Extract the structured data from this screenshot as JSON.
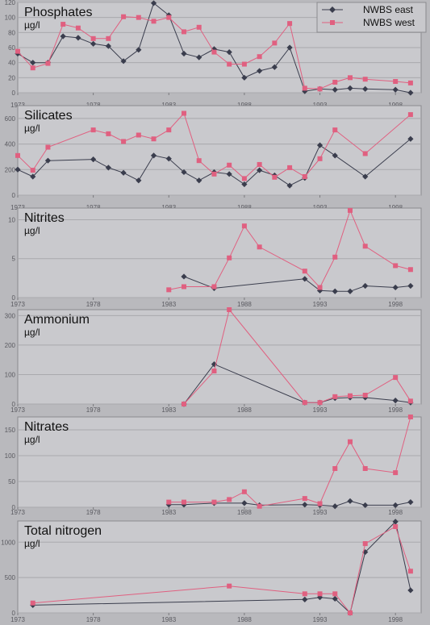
{
  "legend": {
    "items": [
      {
        "label": "NWBS east",
        "color": "#3a3d4d",
        "marker": "diamond"
      },
      {
        "label": "NWBS west",
        "color": "#e06080",
        "marker": "square"
      }
    ]
  },
  "chart_data": [
    {
      "type": "line",
      "title": "Phosphates",
      "unit": "µg/l",
      "xlim": [
        1973,
        1999.7
      ],
      "xticks": [
        1973,
        1978,
        1983,
        1988,
        1993,
        1998
      ],
      "ylim": [
        0,
        120
      ],
      "yticks": [
        0,
        20,
        40,
        60,
        80,
        100,
        120
      ],
      "legend": "top-right",
      "series": [
        {
          "name": "NWBS east",
          "color": "#3a3d4d",
          "marker": "diamond",
          "points": [
            [
              1973,
              52
            ],
            [
              1974,
              40
            ],
            [
              1975,
              40
            ],
            [
              1976,
              75
            ],
            [
              1977,
              73
            ],
            [
              1978,
              65
            ],
            [
              1979,
              62
            ],
            [
              1980,
              42
            ],
            [
              1981,
              57
            ],
            [
              1982,
              119
            ],
            [
              1983,
              103
            ],
            [
              1984,
              52
            ],
            [
              1985,
              47
            ],
            [
              1986,
              58
            ],
            [
              1987,
              54
            ],
            [
              1988,
              20
            ],
            [
              1989,
              29
            ],
            [
              1990,
              34
            ],
            [
              1991,
              60
            ],
            [
              1992,
              2
            ],
            [
              1993,
              5
            ],
            [
              1994,
              4
            ],
            [
              1995,
              6
            ],
            [
              1996,
              5
            ],
            [
              1998,
              4
            ],
            [
              1999,
              0
            ]
          ]
        },
        {
          "name": "NWBS west",
          "color": "#e06080",
          "marker": "square",
          "points": [
            [
              1973,
              55
            ],
            [
              1974,
              33
            ],
            [
              1975,
              39
            ],
            [
              1976,
              91
            ],
            [
              1977,
              86
            ],
            [
              1978,
              72
            ],
            [
              1979,
              72
            ],
            [
              1980,
              101
            ],
            [
              1981,
              100
            ],
            [
              1982,
              95
            ],
            [
              1983,
              100
            ],
            [
              1984,
              81
            ],
            [
              1985,
              87
            ],
            [
              1986,
              54
            ],
            [
              1987,
              38
            ],
            [
              1988,
              38
            ],
            [
              1989,
              48
            ],
            [
              1990,
              66
            ],
            [
              1991,
              92
            ],
            [
              1992,
              6
            ],
            [
              1993,
              5
            ],
            [
              1994,
              14
            ],
            [
              1995,
              20
            ],
            [
              1996,
              18
            ],
            [
              1998,
              15
            ],
            [
              1999,
              13
            ]
          ]
        }
      ]
    },
    {
      "type": "line",
      "title": "Silicates",
      "unit": "µg/l",
      "xlim": [
        1973,
        1999.7
      ],
      "xticks": [
        1973,
        1978,
        1983,
        1988,
        1993,
        1998
      ],
      "ylim": [
        0,
        700
      ],
      "yticks": [
        0,
        200,
        400,
        600
      ],
      "series": [
        {
          "name": "NWBS east",
          "color": "#3a3d4d",
          "marker": "diamond",
          "points": [
            [
              1973,
              200
            ],
            [
              1974,
              145
            ],
            [
              1975,
              270
            ],
            [
              1978,
              280
            ],
            [
              1979,
              215
            ],
            [
              1980,
              175
            ],
            [
              1981,
              115
            ],
            [
              1982,
              310
            ],
            [
              1983,
              285
            ],
            [
              1984,
              180
            ],
            [
              1985,
              115
            ],
            [
              1986,
              180
            ],
            [
              1987,
              165
            ],
            [
              1988,
              85
            ],
            [
              1989,
              195
            ],
            [
              1990,
              155
            ],
            [
              1991,
              75
            ],
            [
              1992,
              135
            ],
            [
              1993,
              390
            ],
            [
              1994,
              310
            ],
            [
              1996,
              145
            ],
            [
              1999,
              440
            ]
          ]
        },
        {
          "name": "NWBS west",
          "color": "#e06080",
          "marker": "square",
          "points": [
            [
              1973,
              310
            ],
            [
              1974,
              195
            ],
            [
              1975,
              375
            ],
            [
              1978,
              510
            ],
            [
              1979,
              480
            ],
            [
              1980,
              420
            ],
            [
              1981,
              470
            ],
            [
              1982,
              440
            ],
            [
              1983,
              510
            ],
            [
              1984,
              640
            ],
            [
              1985,
              270
            ],
            [
              1986,
              165
            ],
            [
              1987,
              235
            ],
            [
              1988,
              130
            ],
            [
              1989,
              240
            ],
            [
              1990,
              140
            ],
            [
              1991,
              215
            ],
            [
              1992,
              145
            ],
            [
              1993,
              285
            ],
            [
              1994,
              510
            ],
            [
              1996,
              325
            ],
            [
              1999,
              630
            ]
          ]
        }
      ]
    },
    {
      "type": "line",
      "title": "Nitrites",
      "unit": "µg/l",
      "xlim": [
        1973,
        1999.7
      ],
      "xticks": [
        1973,
        1978,
        1983,
        1988,
        1993,
        1998
      ],
      "ylim": [
        0,
        11.5
      ],
      "yticks": [
        0,
        5,
        10
      ],
      "series": [
        {
          "name": "NWBS east",
          "color": "#3a3d4d",
          "marker": "diamond",
          "points": [
            [
              1984,
              2.7
            ],
            [
              1986,
              1.2
            ],
            [
              1992,
              2.4
            ],
            [
              1993,
              0.9
            ],
            [
              1994,
              0.8
            ],
            [
              1995,
              0.8
            ],
            [
              1996,
              1.5
            ],
            [
              1998,
              1.3
            ],
            [
              1999,
              1.5
            ]
          ]
        },
        {
          "name": "NWBS west",
          "color": "#e06080",
          "marker": "square",
          "points": [
            [
              1983,
              1.0
            ],
            [
              1984,
              1.4
            ],
            [
              1986,
              1.4
            ],
            [
              1987,
              5.1
            ],
            [
              1988,
              9.2
            ],
            [
              1989,
              6.5
            ],
            [
              1992,
              3.4
            ],
            [
              1993,
              1.3
            ],
            [
              1994,
              5.2
            ],
            [
              1995,
              11.2
            ],
            [
              1996,
              6.6
            ],
            [
              1998,
              4.1
            ],
            [
              1999,
              3.6
            ]
          ]
        }
      ]
    },
    {
      "type": "line",
      "title": "Ammonium",
      "unit": "µg/l",
      "xlim": [
        1973,
        1999.7
      ],
      "xticks": [
        1973,
        1978,
        1983,
        1988,
        1993,
        1998
      ],
      "ylim": [
        0,
        320
      ],
      "yticks": [
        0,
        100,
        200,
        300
      ],
      "series": [
        {
          "name": "NWBS east",
          "color": "#3a3d4d",
          "marker": "diamond",
          "points": [
            [
              1984,
              0
            ],
            [
              1986,
              135
            ],
            [
              1992,
              5
            ],
            [
              1993,
              5
            ],
            [
              1994,
              20
            ],
            [
              1995,
              22
            ],
            [
              1996,
              22
            ],
            [
              1998,
              12
            ],
            [
              1999,
              5
            ]
          ]
        },
        {
          "name": "NWBS west",
          "color": "#e06080",
          "marker": "square",
          "points": [
            [
              1984,
              0
            ],
            [
              1986,
              112
            ],
            [
              1987,
              320
            ],
            [
              1992,
              5
            ],
            [
              1993,
              5
            ],
            [
              1994,
              25
            ],
            [
              1995,
              28
            ],
            [
              1996,
              30
            ],
            [
              1998,
              90
            ],
            [
              1999,
              10
            ]
          ]
        }
      ]
    },
    {
      "type": "line",
      "title": "Nitrates",
      "unit": "µg/l",
      "xlim": [
        1973,
        1999.7
      ],
      "xticks": [
        1973,
        1978,
        1983,
        1988,
        1993,
        1998
      ],
      "ylim": [
        0,
        175
      ],
      "yticks": [
        0,
        50,
        100,
        150
      ],
      "series": [
        {
          "name": "NWBS east",
          "color": "#3a3d4d",
          "marker": "diamond",
          "points": [
            [
              1983,
              5
            ],
            [
              1984,
              5
            ],
            [
              1986,
              8
            ],
            [
              1988,
              8
            ],
            [
              1989,
              4
            ],
            [
              1992,
              5
            ],
            [
              1993,
              4
            ],
            [
              1994,
              2
            ],
            [
              1995,
              12
            ],
            [
              1996,
              4
            ],
            [
              1998,
              4
            ],
            [
              1999,
              10
            ]
          ]
        },
        {
          "name": "NWBS west",
          "color": "#e06080",
          "marker": "square",
          "points": [
            [
              1983,
              10
            ],
            [
              1984,
              10
            ],
            [
              1986,
              10
            ],
            [
              1987,
              15
            ],
            [
              1988,
              30
            ],
            [
              1989,
              2
            ],
            [
              1992,
              17
            ],
            [
              1993,
              7
            ],
            [
              1994,
              75
            ],
            [
              1995,
              127
            ],
            [
              1996,
              75
            ],
            [
              1998,
              67
            ],
            [
              1999,
              175
            ]
          ]
        }
      ]
    },
    {
      "type": "line",
      "title": "Total nitrogen",
      "unit": "µg/l",
      "xlim": [
        1973,
        1999.7
      ],
      "xticks": [
        1973,
        1978,
        1983,
        1988,
        1993,
        1998
      ],
      "ylim": [
        0,
        1300
      ],
      "yticks": [
        0,
        500,
        1000
      ],
      "series": [
        {
          "name": "NWBS east",
          "color": "#3a3d4d",
          "marker": "diamond",
          "points": [
            [
              1974,
              110
            ],
            [
              1992,
              190
            ],
            [
              1993,
              220
            ],
            [
              1994,
              200
            ],
            [
              1995,
              0
            ],
            [
              1996,
              860
            ],
            [
              1998,
              1290
            ],
            [
              1999,
              320
            ]
          ]
        },
        {
          "name": "NWBS west",
          "color": "#e06080",
          "marker": "square",
          "points": [
            [
              1974,
              140
            ],
            [
              1987,
              380
            ],
            [
              1992,
              270
            ],
            [
              1993,
              270
            ],
            [
              1994,
              270
            ],
            [
              1995,
              0
            ],
            [
              1996,
              980
            ],
            [
              1998,
              1220
            ],
            [
              1999,
              590
            ]
          ]
        }
      ]
    }
  ]
}
